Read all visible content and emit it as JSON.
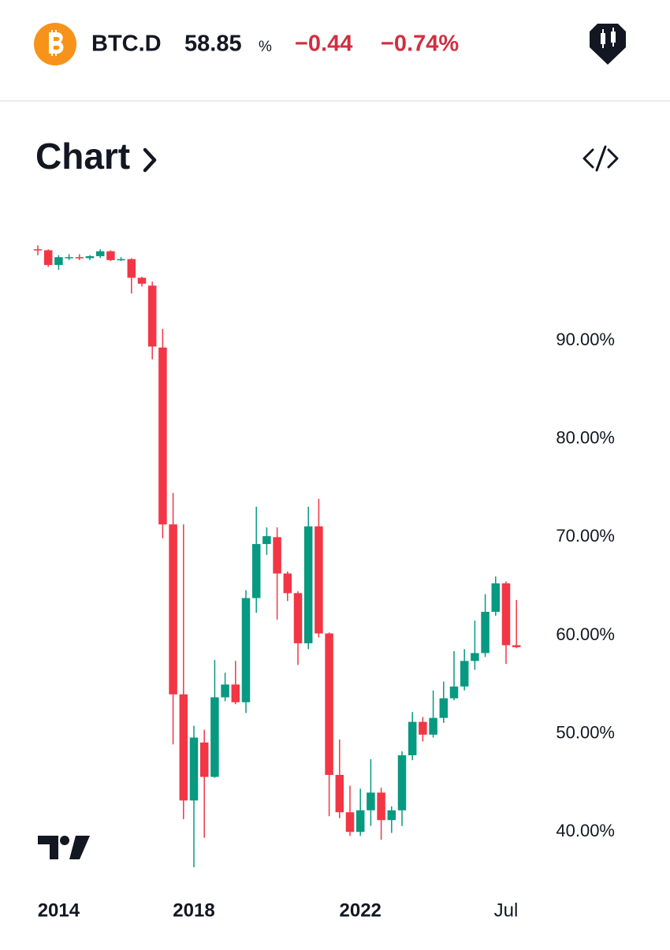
{
  "header": {
    "symbol": "BTC.D",
    "price": "58.85",
    "unit": "%",
    "change": "−0.44",
    "change_percent": "−0.74%"
  },
  "section_title": "Chart",
  "chart_data": {
    "type": "candlestick",
    "categories": [
      null,
      null,
      "2014",
      null,
      null,
      null,
      null,
      null,
      null,
      null,
      null,
      null,
      null,
      null,
      null,
      "2018",
      null,
      null,
      null,
      null,
      null,
      null,
      null,
      null,
      null,
      null,
      null,
      null,
      null,
      null,
      null,
      "2022",
      null,
      null,
      null,
      null,
      null,
      null,
      null,
      null,
      null,
      null,
      null,
      null,
      null,
      "Jul",
      null
    ],
    "open": [
      99.3,
      99.2,
      97.7,
      98.5,
      98.5,
      98.4,
      98.6,
      99.1,
      98.3,
      98.3,
      96.4,
      95.6,
      89.3,
      71.3,
      54.0,
      43.2,
      49.1,
      45.6,
      53.7,
      55.0,
      53.2,
      63.8,
      69.3,
      70.0,
      66.3,
      64.3,
      59.2,
      71.1,
      60.2,
      45.8,
      42.0,
      40.0,
      42.2,
      44.0,
      41.2,
      42.2,
      47.8,
      51.2,
      49.9,
      51.6,
      53.6,
      54.8,
      57.4,
      58.2,
      62.4,
      65.3,
      59.0
    ],
    "high": [
      99.7,
      99.3,
      98.7,
      98.8,
      98.8,
      98.7,
      99.3,
      99.2,
      98.5,
      98.4,
      96.5,
      96.0,
      91.2,
      74.5,
      71.3,
      50.8,
      50.4,
      57.5,
      56.2,
      57.4,
      64.6,
      73.1,
      71.0,
      71.0,
      66.5,
      64.5,
      73.1,
      73.9,
      60.3,
      49.4,
      44.7,
      44.4,
      47.4,
      44.5,
      42.6,
      48.2,
      52.2,
      51.7,
      54.4,
      55.3,
      58.4,
      58.6,
      61.5,
      64.2,
      66.0,
      65.5,
      63.6
    ],
    "low": [
      98.7,
      97.5,
      97.2,
      98.2,
      98.2,
      98.2,
      98.4,
      98.1,
      98.1,
      94.8,
      95.5,
      88.1,
      69.9,
      48.9,
      41.3,
      36.4,
      39.4,
      45.5,
      53.3,
      53.0,
      52.1,
      62.3,
      68.2,
      61.6,
      63.5,
      57.0,
      58.6,
      59.8,
      41.6,
      41.4,
      39.6,
      39.6,
      40.6,
      39.2,
      39.9,
      40.6,
      47.3,
      49.2,
      49.6,
      51.1,
      53.4,
      54.4,
      56.5,
      57.8,
      62.0,
      57.1,
      58.7
    ],
    "close": [
      99.2,
      97.7,
      98.5,
      98.5,
      98.4,
      98.6,
      99.1,
      98.2,
      98.3,
      96.4,
      95.8,
      89.4,
      71.3,
      54.0,
      43.2,
      49.6,
      45.6,
      53.7,
      55.0,
      53.2,
      63.8,
      69.3,
      70.1,
      66.3,
      64.3,
      59.2,
      71.1,
      60.2,
      45.8,
      42.0,
      40.0,
      42.2,
      44.0,
      41.2,
      42.2,
      47.8,
      51.2,
      49.9,
      51.6,
      53.6,
      54.8,
      57.4,
      58.2,
      62.4,
      65.3,
      59.0,
      58.8
    ],
    "up_color": "#089981",
    "down_color": "#f23645",
    "ylim": [
      34.8,
      100.6
    ],
    "yticks": [
      {
        "value": 40,
        "label": "40.00%"
      },
      {
        "value": 50,
        "label": "50.00%"
      },
      {
        "value": 60,
        "label": "60.00%"
      },
      {
        "value": 70,
        "label": "70.00%"
      },
      {
        "value": 80,
        "label": "80.00%"
      },
      {
        "value": 90,
        "label": "90.00%"
      }
    ],
    "grid": false
  }
}
